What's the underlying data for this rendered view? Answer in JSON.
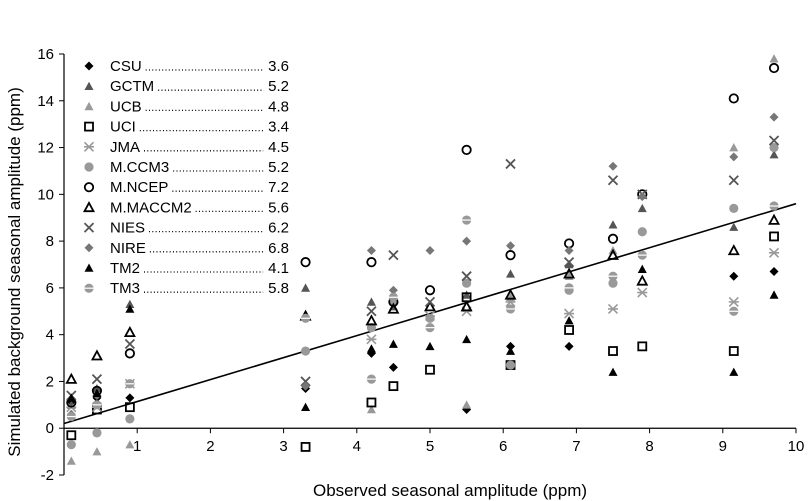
{
  "chart_data": {
    "type": "scatter",
    "xlabel": "Observed seasonal amplitude (ppm)",
    "ylabel": "Simulated background seasonal amplitude (ppm)",
    "xlim": [
      0,
      10
    ],
    "ylim": [
      -2,
      16
    ],
    "xticks": [
      1,
      2,
      3,
      4,
      5,
      6,
      7,
      8,
      9,
      10
    ],
    "yticks": [
      -2,
      0,
      2,
      4,
      6,
      8,
      10,
      12,
      14,
      16
    ],
    "grid": false,
    "legend_position": "top-left",
    "regression_line": {
      "x": [
        0,
        10
      ],
      "y": [
        0.2,
        9.6
      ]
    },
    "series": [
      {
        "name": "CSU",
        "value": "3.6",
        "marker": "diamond-filled",
        "color": "#000000",
        "x": [
          0.1,
          0.45,
          0.9,
          3.3,
          4.2,
          4.5,
          5.5,
          6.1,
          6.9,
          7.5,
          9.15,
          9.7
        ],
        "y": [
          1.1,
          1.3,
          1.3,
          1.7,
          3.2,
          2.6,
          0.8,
          3.5,
          3.5,
          6.2,
          6.5,
          6.7
        ]
      },
      {
        "name": "GCTM",
        "value": "5.2",
        "marker": "triangle-filled",
        "color": "#555555",
        "x": [
          0.1,
          0.45,
          0.9,
          3.3,
          4.2,
          4.5,
          5.5,
          6.1,
          6.9,
          7.5,
          7.9,
          9.15,
          9.7
        ],
        "y": [
          1.0,
          1.7,
          5.3,
          6.0,
          5.4,
          5.2,
          5.7,
          6.6,
          7.0,
          8.7,
          9.4,
          8.6,
          11.7
        ]
      },
      {
        "name": "UCB",
        "value": "4.8",
        "marker": "triangle-filled",
        "color": "#999999",
        "x": [
          0.1,
          0.45,
          0.9,
          4.2,
          5.5,
          6.1,
          6.9,
          7.5,
          9.15,
          9.7
        ],
        "y": [
          -1.4,
          -1.0,
          -0.7,
          0.8,
          1.0,
          5.6,
          6.5,
          7.6,
          12.0,
          15.8
        ]
      },
      {
        "name": "UCI",
        "value": "3.4",
        "marker": "square-open",
        "color": "#000000",
        "x": [
          0.1,
          0.45,
          0.9,
          3.3,
          4.2,
          4.5,
          5.0,
          5.5,
          6.1,
          6.9,
          7.5,
          7.9,
          9.15,
          9.7
        ],
        "y": [
          -0.3,
          0.8,
          0.9,
          -0.8,
          1.1,
          1.8,
          2.5,
          5.6,
          2.7,
          4.2,
          3.3,
          3.5,
          3.3,
          8.2
        ]
      },
      {
        "name": "JMA",
        "value": "4.5",
        "marker": "asterisk",
        "color": "#999999",
        "x": [
          0.1,
          0.45,
          0.9,
          4.2,
          5.0,
          5.5,
          6.1,
          6.9,
          7.5,
          7.9,
          9.15,
          9.7
        ],
        "y": [
          0.9,
          0.9,
          1.9,
          3.8,
          4.8,
          5.0,
          5.4,
          4.9,
          5.1,
          5.8,
          5.4,
          7.5
        ]
      },
      {
        "name": "M.CCM3",
        "value": "5.2",
        "marker": "circle-filled",
        "color": "#999999",
        "x": [
          0.1,
          0.45,
          0.9,
          3.3,
          4.2,
          4.5,
          5.0,
          5.5,
          6.1,
          6.9,
          7.5,
          7.9,
          9.15,
          9.7
        ],
        "y": [
          -0.7,
          -0.2,
          0.4,
          3.3,
          4.3,
          5.4,
          4.7,
          6.2,
          2.7,
          5.9,
          6.2,
          8.4,
          9.4,
          12.0
        ]
      },
      {
        "name": "M.NCEP",
        "value": "7.2",
        "marker": "circle-open",
        "color": "#000000",
        "x": [
          0.1,
          0.45,
          0.9,
          3.3,
          4.2,
          4.5,
          5.0,
          5.5,
          6.1,
          6.9,
          7.5,
          7.9,
          9.15,
          9.7
        ],
        "y": [
          1.1,
          1.6,
          3.2,
          7.1,
          7.1,
          5.4,
          5.9,
          11.9,
          7.4,
          7.9,
          8.1,
          10.0,
          14.1,
          15.4
        ]
      },
      {
        "name": "M.MACCM2",
        "value": "5.6",
        "marker": "triangle-open",
        "color": "#000000",
        "x": [
          0.1,
          0.45,
          0.9,
          3.3,
          4.2,
          4.5,
          5.0,
          5.5,
          6.1,
          6.9,
          7.5,
          7.9,
          9.15,
          9.7
        ],
        "y": [
          2.1,
          3.1,
          4.1,
          4.8,
          4.6,
          5.1,
          5.2,
          5.2,
          5.7,
          6.6,
          7.4,
          6.3,
          7.6,
          8.9
        ]
      },
      {
        "name": "NIES",
        "value": "6.2",
        "marker": "x",
        "color": "#555555",
        "x": [
          0.1,
          0.45,
          0.9,
          3.3,
          4.2,
          4.5,
          5.0,
          5.5,
          6.1,
          6.9,
          7.5,
          7.9,
          9.15,
          9.7
        ],
        "y": [
          1.4,
          2.1,
          3.6,
          2.0,
          5.0,
          7.4,
          5.4,
          6.5,
          11.3,
          7.1,
          10.6,
          10.0,
          10.6,
          12.3
        ]
      },
      {
        "name": "NIRE",
        "value": "6.8",
        "marker": "diamond-filled",
        "color": "#777777",
        "x": [
          0.1,
          0.45,
          0.9,
          3.3,
          4.2,
          4.5,
          5.0,
          5.5,
          6.1,
          6.9,
          7.5,
          7.9,
          9.15,
          9.7
        ],
        "y": [
          0.6,
          1.4,
          1.9,
          1.8,
          7.6,
          5.9,
          7.6,
          8.0,
          7.8,
          7.6,
          11.2,
          9.9,
          11.6,
          13.3
        ]
      },
      {
        "name": "TM2",
        "value": "4.1",
        "marker": "triangle-filled",
        "color": "#000000",
        "x": [
          0.1,
          0.45,
          0.9,
          3.3,
          4.2,
          4.5,
          5.0,
          5.5,
          6.1,
          6.9,
          7.5,
          7.9,
          9.15,
          9.7
        ],
        "y": [
          1.3,
          1.5,
          5.1,
          0.9,
          3.4,
          3.6,
          3.5,
          3.8,
          3.3,
          4.6,
          2.4,
          6.8,
          2.4,
          5.7
        ]
      },
      {
        "name": "TM3",
        "value": "5.8",
        "marker": "circle-bar",
        "color": "#999999",
        "x": [
          0.1,
          0.45,
          0.9,
          3.3,
          4.2,
          4.5,
          5.0,
          5.5,
          6.1,
          6.9,
          7.5,
          7.9,
          9.15,
          9.7
        ],
        "y": [
          0.5,
          1.0,
          1.9,
          4.7,
          2.1,
          5.6,
          4.3,
          8.9,
          5.1,
          6.0,
          6.5,
          7.4,
          5.0,
          9.5
        ]
      }
    ]
  }
}
